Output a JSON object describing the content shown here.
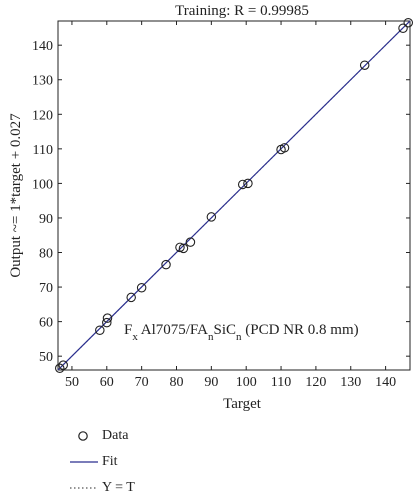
{
  "chart_data": {
    "type": "scatter",
    "title": "Training: R = 0.99985",
    "xlabel": "Target",
    "ylabel": "Output ~= 1*target + 0.027",
    "xlim": [
      46,
      147
    ],
    "ylim": [
      46,
      147
    ],
    "xticks": [
      50,
      60,
      70,
      80,
      90,
      100,
      110,
      120,
      130,
      140
    ],
    "yticks": [
      50,
      60,
      70,
      80,
      90,
      100,
      110,
      120,
      130,
      140
    ],
    "annotation": {
      "main": "F",
      "sub1": "x",
      "mid": " Al7075/FA",
      "sub2": "n",
      "mid2": "SiC",
      "sub3": "n",
      "tail": " (PCD NR 0.8 mm)"
    },
    "series": [
      {
        "name": "Data",
        "kind": "markers",
        "x": [
          46.5,
          47.5,
          58,
          60,
          60.2,
          67,
          70,
          77,
          81,
          82,
          84,
          90,
          99,
          100.5,
          110,
          111,
          134,
          145,
          146.5
        ],
        "y": [
          46.5,
          47.4,
          57.5,
          59.7,
          61,
          67,
          69.8,
          76.5,
          81.5,
          81.2,
          83,
          90.3,
          99.7,
          100,
          109.8,
          110.3,
          134.2,
          144.9,
          146.5
        ]
      },
      {
        "name": "Fit",
        "kind": "line",
        "slope": 1,
        "intercept": 0.027
      },
      {
        "name": "Y = T",
        "kind": "dotted-line"
      }
    ],
    "colors": {
      "fit": "#2b2f8f",
      "markers": "#222222",
      "identity": "#555555"
    },
    "legend_position": "below"
  }
}
